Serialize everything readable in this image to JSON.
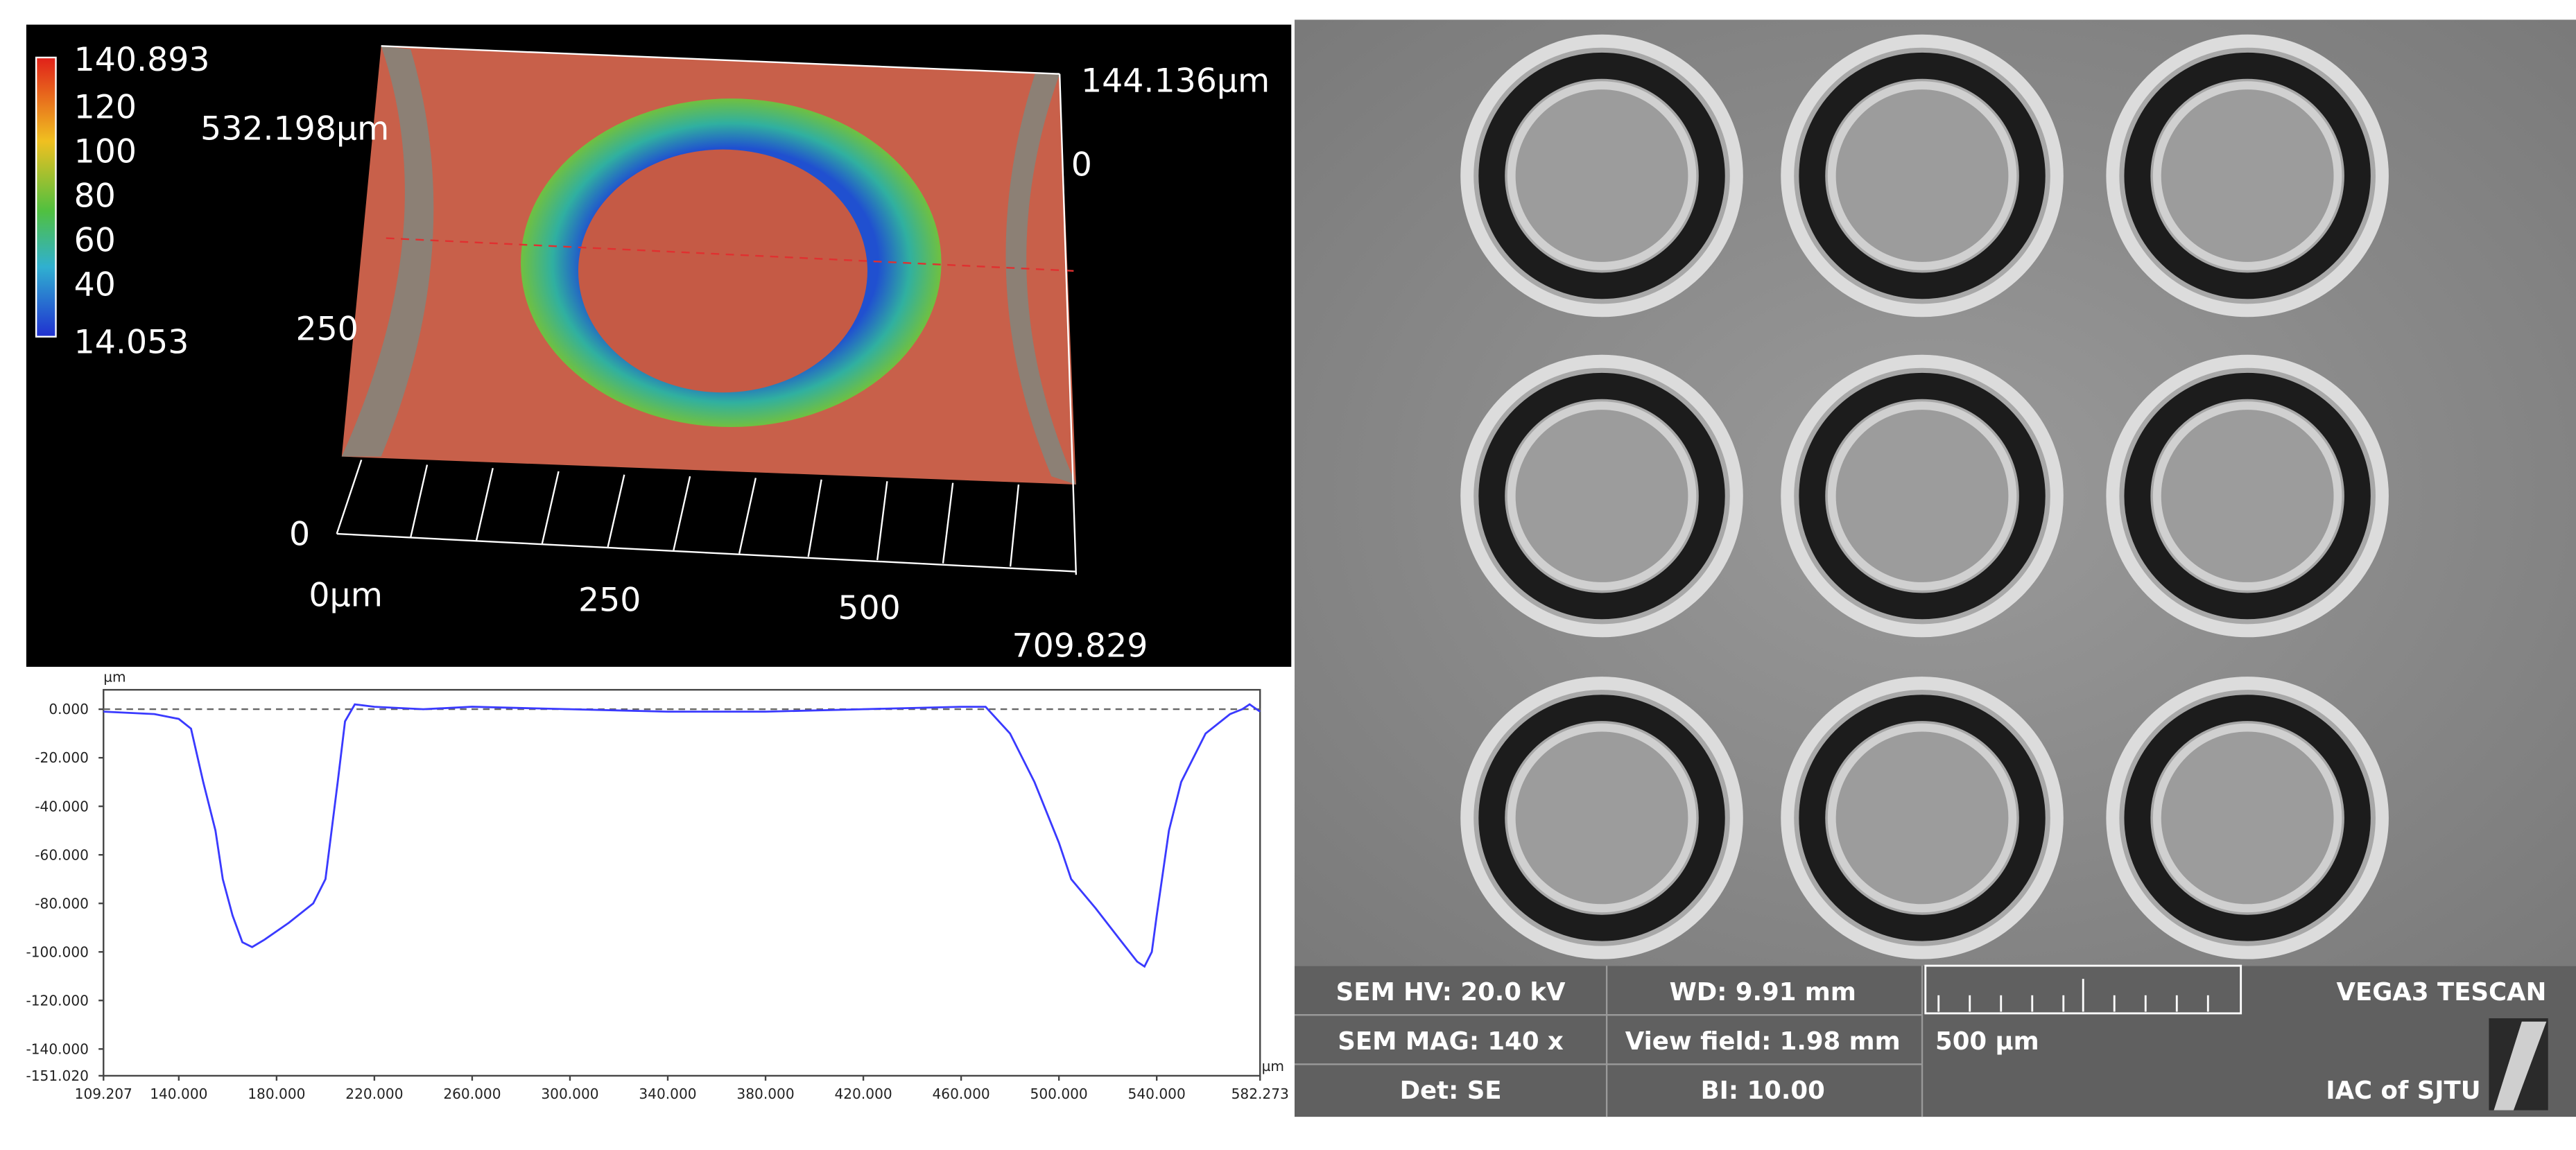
{
  "surface_map": {
    "colorbar_labels": [
      "140.893",
      "120",
      "100",
      "80",
      "60",
      "40",
      "14.053"
    ],
    "axis_labels": {
      "y_far": "144.136µm",
      "z_zero": "0",
      "y_length": "532.198µm",
      "y_mid": "250",
      "y_zero": "0",
      "x_zero": "0µm",
      "x_mid1": "250",
      "x_mid2": "500",
      "x_end": "709.829"
    }
  },
  "chart_data": {
    "type": "line",
    "color": "#3a3aff",
    "y_label": "µm",
    "x_label": "µm",
    "x": [
      109.207,
      130,
      140,
      145,
      150,
      155,
      158,
      162,
      166,
      170,
      175,
      185,
      195,
      200,
      205,
      208,
      212,
      220,
      240,
      260,
      300,
      340,
      380,
      420,
      460,
      470,
      480,
      490,
      500,
      505,
      515,
      525,
      532,
      535,
      538,
      540,
      545,
      550,
      560,
      570,
      575,
      578,
      582.273
    ],
    "values": [
      -1,
      -2,
      -4,
      -8,
      -30,
      -50,
      -70,
      -85,
      -96,
      -98,
      -95,
      -88,
      -80,
      -70,
      -30,
      -5,
      2,
      1,
      0,
      1,
      0,
      -1,
      -1,
      0,
      1,
      1,
      -10,
      -30,
      -55,
      -70,
      -82,
      -95,
      -104,
      -106,
      -100,
      -85,
      -50,
      -30,
      -10,
      -2,
      0,
      2,
      -1
    ],
    "xlim": [
      109.207,
      582.273
    ],
    "ylim": [
      -151.02,
      8
    ],
    "xticks": [
      {
        "value": 109.207,
        "label": "109.207"
      },
      {
        "value": 140,
        "label": "140.000"
      },
      {
        "value": 180,
        "label": "180.000"
      },
      {
        "value": 220,
        "label": "220.000"
      },
      {
        "value": 260,
        "label": "260.000"
      },
      {
        "value": 300,
        "label": "300.000"
      },
      {
        "value": 340,
        "label": "340.000"
      },
      {
        "value": 380,
        "label": "380.000"
      },
      {
        "value": 420,
        "label": "420.000"
      },
      {
        "value": 460,
        "label": "460.000"
      },
      {
        "value": 500,
        "label": "500.000"
      },
      {
        "value": 540,
        "label": "540.000"
      },
      {
        "value": 582.273,
        "label": "582.273"
      }
    ],
    "yticks": [
      {
        "value": 0,
        "label": "0.000"
      },
      {
        "value": -20,
        "label": "-20.000"
      },
      {
        "value": -40,
        "label": "-40.000"
      },
      {
        "value": -60,
        "label": "-60.000"
      },
      {
        "value": -80,
        "label": "-80.000"
      },
      {
        "value": -100,
        "label": "-100.000"
      },
      {
        "value": -120,
        "label": "-120.000"
      },
      {
        "value": -140,
        "label": "-140.000"
      },
      {
        "value": -151.02,
        "label": "-151.020"
      }
    ]
  },
  "sem_info": {
    "hv": "SEM HV: 20.0 kV",
    "wd": "WD: 9.91 mm",
    "brand": "VEGA3 TESCAN",
    "mag": "SEM MAG: 140 x",
    "view_field": "View field: 1.98 mm",
    "scale": "500 µm",
    "det": "Det: SE",
    "bi": "BI: 10.00",
    "lab": "IAC of SJTU"
  }
}
